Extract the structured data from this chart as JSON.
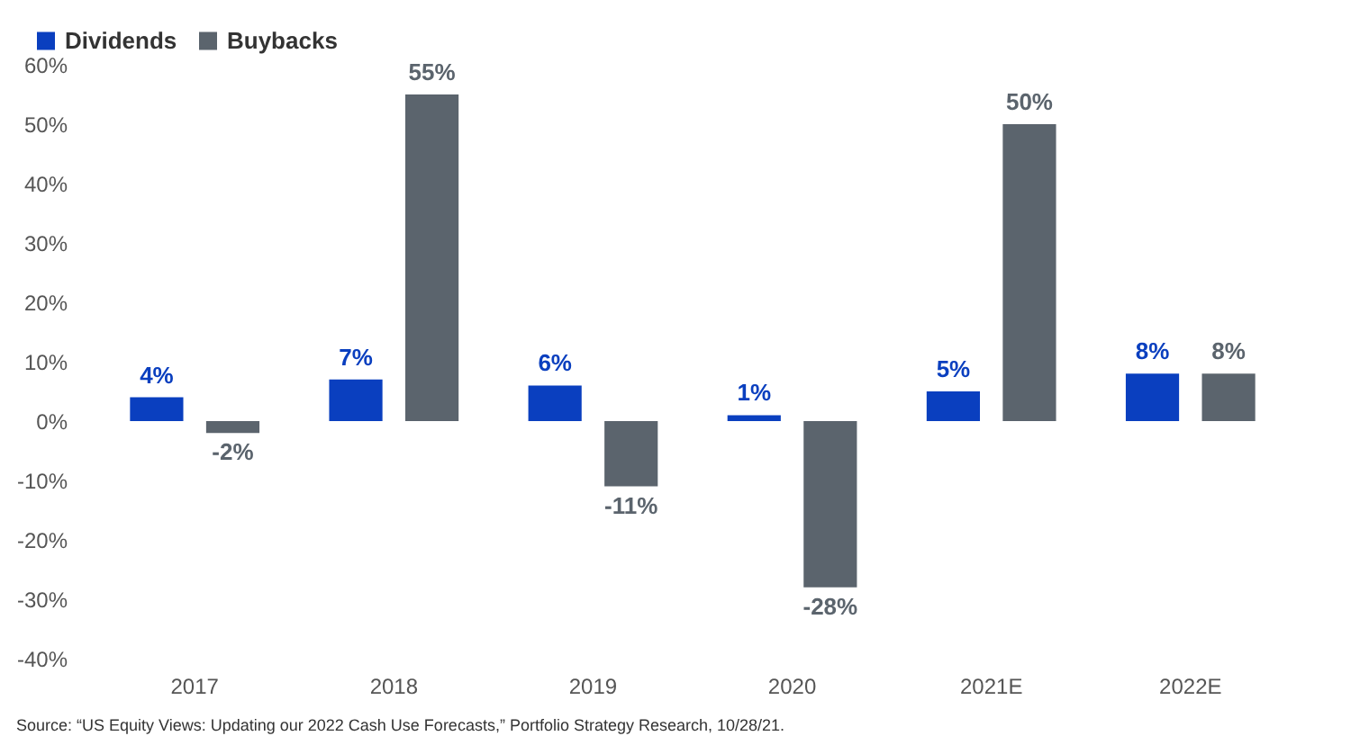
{
  "chart_data": {
    "type": "bar",
    "categories": [
      "2017",
      "2018",
      "2019",
      "2020",
      "2021E",
      "2022E"
    ],
    "series": [
      {
        "name": "Dividends",
        "color": "#0a3fbf",
        "values": [
          4,
          7,
          6,
          1,
          5,
          8
        ],
        "value_labels": [
          "4%",
          "7%",
          "6%",
          "1%",
          "5%",
          "8%"
        ]
      },
      {
        "name": "Buybacks",
        "color": "#5b646d",
        "values": [
          -2,
          55,
          -11,
          -28,
          50,
          8
        ],
        "value_labels": [
          "-2%",
          "55%",
          "-11%",
          "-28%",
          "50%",
          "8%"
        ]
      }
    ],
    "ylim": [
      -40,
      60
    ],
    "yticks": [
      {
        "value": -40,
        "label": "-40%"
      },
      {
        "value": -30,
        "label": "-30%"
      },
      {
        "value": -20,
        "label": "-20%"
      },
      {
        "value": -10,
        "label": "-10%"
      },
      {
        "value": 0,
        "label": "0%"
      },
      {
        "value": 10,
        "label": "10%"
      },
      {
        "value": 20,
        "label": "20%"
      },
      {
        "value": 30,
        "label": "30%"
      },
      {
        "value": 40,
        "label": "40%"
      },
      {
        "value": 50,
        "label": "50%"
      },
      {
        "value": 60,
        "label": "60%"
      }
    ],
    "grid": false,
    "legend": "top left",
    "annotations": [
      "Source: “US Equity Views: Updating our 2022 Cash Use Forecasts,” Portfolio Strategy Research, 10/28/21."
    ]
  }
}
